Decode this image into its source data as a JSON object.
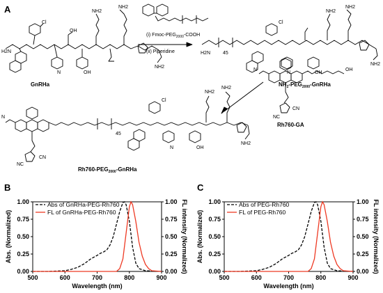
{
  "panel_labels": {
    "a": "A",
    "b": "B",
    "c": "C"
  },
  "scheme": {
    "step1_label": "(i) Fmoc-PEG",
    "step1_sub": "2000",
    "step1_suffix": "-COOH",
    "step2_label": "(ii) Piperidine",
    "compounds": {
      "gnrha": "GnRHa",
      "nh2_peg_prefix": "NH",
      "nh2_peg_sub1": "2",
      "nh2_peg_mid": "-PEG",
      "nh2_peg_sub2": "2000",
      "nh2_peg_suffix": "-GnRHa",
      "rh760ga": "Rh760-GA",
      "final_prefix": "Rh760-PEG",
      "final_sub": "2000",
      "final_suffix": "-GnRHa"
    },
    "atom_labels": {
      "cl": "Cl",
      "oh": "OH",
      "nh2": "NH2",
      "nh": "NH",
      "n": "N",
      "o": "O",
      "h2n": "H2N",
      "hn": "HN",
      "cn": "CN",
      "nc": "NC",
      "h": "H",
      "peg_n": "45"
    }
  },
  "chart_data": [
    {
      "type": "line",
      "xlabel": "Wavelength (nm)",
      "ylabel_left": "Abs. (Normalized)",
      "ylabel_right": "FL intensity (Normalized)",
      "xlim": [
        500,
        900
      ],
      "ylim": [
        0,
        1.0
      ],
      "xticks": [
        "500",
        "600",
        "700",
        "800",
        "900"
      ],
      "yticks": [
        "0.00",
        "0.25",
        "0.50",
        "0.75",
        "1.00"
      ],
      "legend_position": "top-left",
      "series": [
        {
          "name": "Abs of GnRHa-PEG-Rh760",
          "color": "#000000",
          "style": "dashed",
          "x": [
            500,
            550,
            600,
            620,
            640,
            660,
            680,
            700,
            710,
            720,
            730,
            740,
            750,
            760,
            770,
            780,
            785,
            790,
            800,
            810,
            820,
            830,
            850,
            900
          ],
          "y": [
            0.0,
            0.0,
            0.01,
            0.03,
            0.06,
            0.11,
            0.18,
            0.23,
            0.26,
            0.28,
            0.31,
            0.38,
            0.5,
            0.68,
            0.86,
            0.99,
            1.0,
            0.96,
            0.72,
            0.35,
            0.12,
            0.04,
            0.01,
            0.0
          ]
        },
        {
          "name": "FL of GnRHa-PEG-Rh760",
          "color": "#ee3a24",
          "style": "solid",
          "x": [
            500,
            760,
            770,
            780,
            790,
            800,
            805,
            810,
            820,
            830,
            840,
            850,
            860,
            870,
            900
          ],
          "y": [
            0.0,
            0.0,
            0.04,
            0.18,
            0.55,
            0.93,
            1.0,
            0.96,
            0.72,
            0.42,
            0.22,
            0.1,
            0.04,
            0.01,
            0.0
          ]
        }
      ]
    },
    {
      "type": "line",
      "xlabel": "Wavelength (nm)",
      "ylabel_left": "Abs. (Normalized)",
      "ylabel_right": "FL intensity (Normalized)",
      "xlim": [
        500,
        900
      ],
      "ylim": [
        0,
        1.0
      ],
      "xticks": [
        "500",
        "600",
        "700",
        "800",
        "900"
      ],
      "yticks": [
        "0.00",
        "0.25",
        "0.50",
        "0.75",
        "1.00"
      ],
      "legend_position": "top-left",
      "series": [
        {
          "name": "Abs of PEG-Rh760",
          "color": "#000000",
          "style": "dashed",
          "x": [
            500,
            550,
            600,
            620,
            640,
            660,
            680,
            700,
            710,
            720,
            730,
            740,
            750,
            760,
            770,
            780,
            785,
            790,
            800,
            810,
            820,
            830,
            850,
            900
          ],
          "y": [
            0.0,
            0.0,
            0.01,
            0.03,
            0.06,
            0.11,
            0.18,
            0.23,
            0.26,
            0.28,
            0.31,
            0.38,
            0.5,
            0.68,
            0.86,
            0.99,
            1.0,
            0.96,
            0.72,
            0.35,
            0.12,
            0.04,
            0.01,
            0.0
          ]
        },
        {
          "name": "FL of PEG-Rh760",
          "color": "#ee3a24",
          "style": "solid",
          "x": [
            500,
            760,
            770,
            780,
            790,
            800,
            805,
            810,
            820,
            830,
            840,
            850,
            860,
            870,
            900
          ],
          "y": [
            0.0,
            0.0,
            0.04,
            0.18,
            0.55,
            0.93,
            1.0,
            0.96,
            0.72,
            0.42,
            0.22,
            0.1,
            0.04,
            0.01,
            0.0
          ]
        }
      ]
    }
  ]
}
